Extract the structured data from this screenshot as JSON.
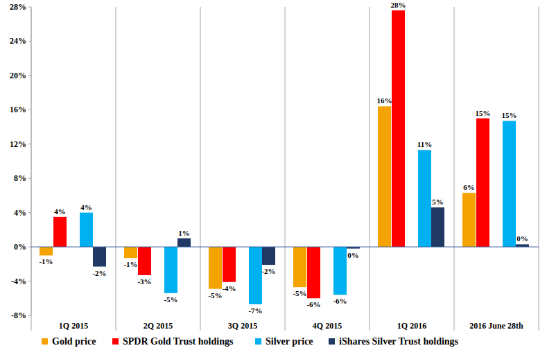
{
  "chart_data": {
    "type": "bar",
    "categories": [
      "1Q 2015",
      "2Q 2015",
      "3Q 2015",
      "4Q 2015",
      "1Q 2016",
      "2016 June 28th"
    ],
    "series": [
      {
        "name": "Gold price",
        "color": "#f5a300",
        "values": [
          -1.0,
          -1.3,
          -4.9,
          -4.7,
          16.4,
          6.3
        ],
        "value_labels": [
          "-1%",
          "-1%",
          "-5%",
          "-5%",
          "16%",
          "6%"
        ]
      },
      {
        "name": "SPDR Gold Trust holdings",
        "color": "#ff0000",
        "values": [
          3.5,
          -3.3,
          -4.1,
          -6.0,
          27.6,
          15.0
        ],
        "value_labels": [
          "4%",
          "-3%",
          "-4%",
          "-6%",
          "28%",
          "15%"
        ]
      },
      {
        "name": "Silver price",
        "color": "#00b0f0",
        "values": [
          4.0,
          -5.4,
          -6.7,
          -5.6,
          11.3,
          14.7
        ],
        "value_labels": [
          "4%",
          "-5%",
          "-7%",
          "-6%",
          "11%",
          "15%"
        ]
      },
      {
        "name": "iShares Silver Trust holdings",
        "color": "#1f3864",
        "values": [
          -2.3,
          1.0,
          -2.1,
          -0.2,
          4.6,
          0.3
        ],
        "value_labels": [
          "-2%",
          "1%",
          "-2%",
          "0%",
          "5%",
          "0%"
        ]
      }
    ],
    "ylim": [
      -8,
      28
    ],
    "yticks": [
      {
        "value": -8,
        "label": "-8%"
      },
      {
        "value": -4,
        "label": "-4%"
      },
      {
        "value": 0,
        "label": "0%"
      },
      {
        "value": 4,
        "label": "4%"
      },
      {
        "value": 8,
        "label": "8%"
      },
      {
        "value": 12,
        "label": "12%"
      },
      {
        "value": 16,
        "label": "16%"
      },
      {
        "value": 20,
        "label": "20%"
      },
      {
        "value": 24,
        "label": "24%"
      },
      {
        "value": 28,
        "label": "28%"
      }
    ],
    "grid": false,
    "legend": "bottom",
    "data_labels": true
  }
}
